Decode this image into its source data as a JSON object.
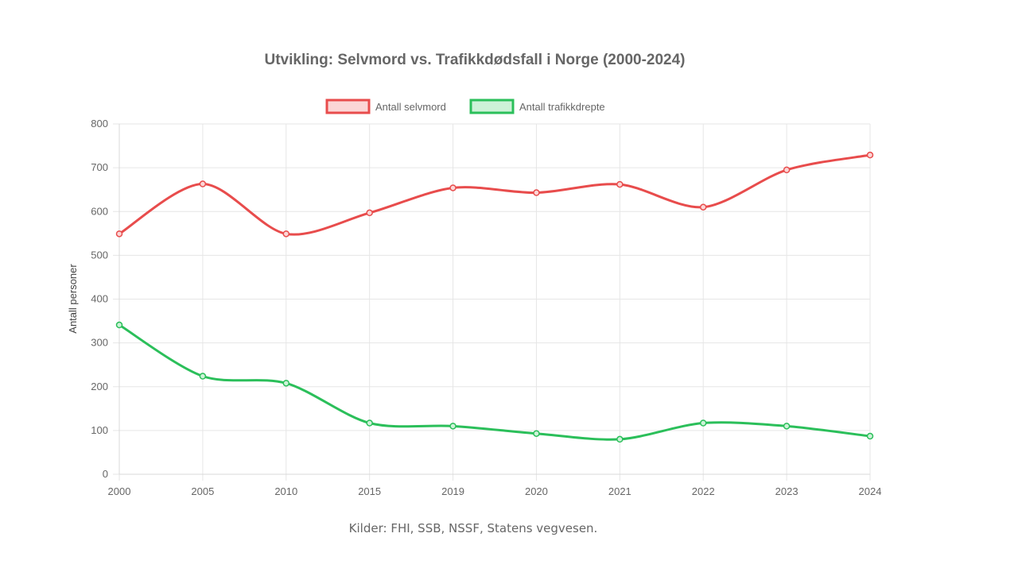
{
  "chart_data": {
    "type": "line",
    "title": "Utvikling: Selvmord vs. Trafikkdødsfall i Norge (2000-2024)",
    "xlabel": "",
    "ylabel": "Antall personer",
    "categories": [
      "2000",
      "2005",
      "2010",
      "2015",
      "2019",
      "2020",
      "2021",
      "2022",
      "2023",
      "2024"
    ],
    "ylim": [
      0,
      800
    ],
    "yticks": [
      "0",
      "100",
      "200",
      "300",
      "400",
      "500",
      "600",
      "700",
      "800"
    ],
    "grid": true,
    "legend_position": "top-center",
    "series": [
      {
        "name": "Antall selvmord",
        "color": "#e84c4c",
        "fill": "#fbd6d6",
        "values": [
          549,
          663,
          549,
          597,
          654,
          643,
          662,
          610,
          695,
          729
        ]
      },
      {
        "name": "Antall trafikkdrepte",
        "color": "#2bbf5a",
        "fill": "#cdf2d8",
        "values": [
          341,
          224,
          208,
          117,
          110,
          93,
          80,
          117,
          110,
          87
        ]
      }
    ]
  },
  "footer": {
    "source": "Kilder: FHI, SSB, NSSF, Statens vegvesen."
  }
}
